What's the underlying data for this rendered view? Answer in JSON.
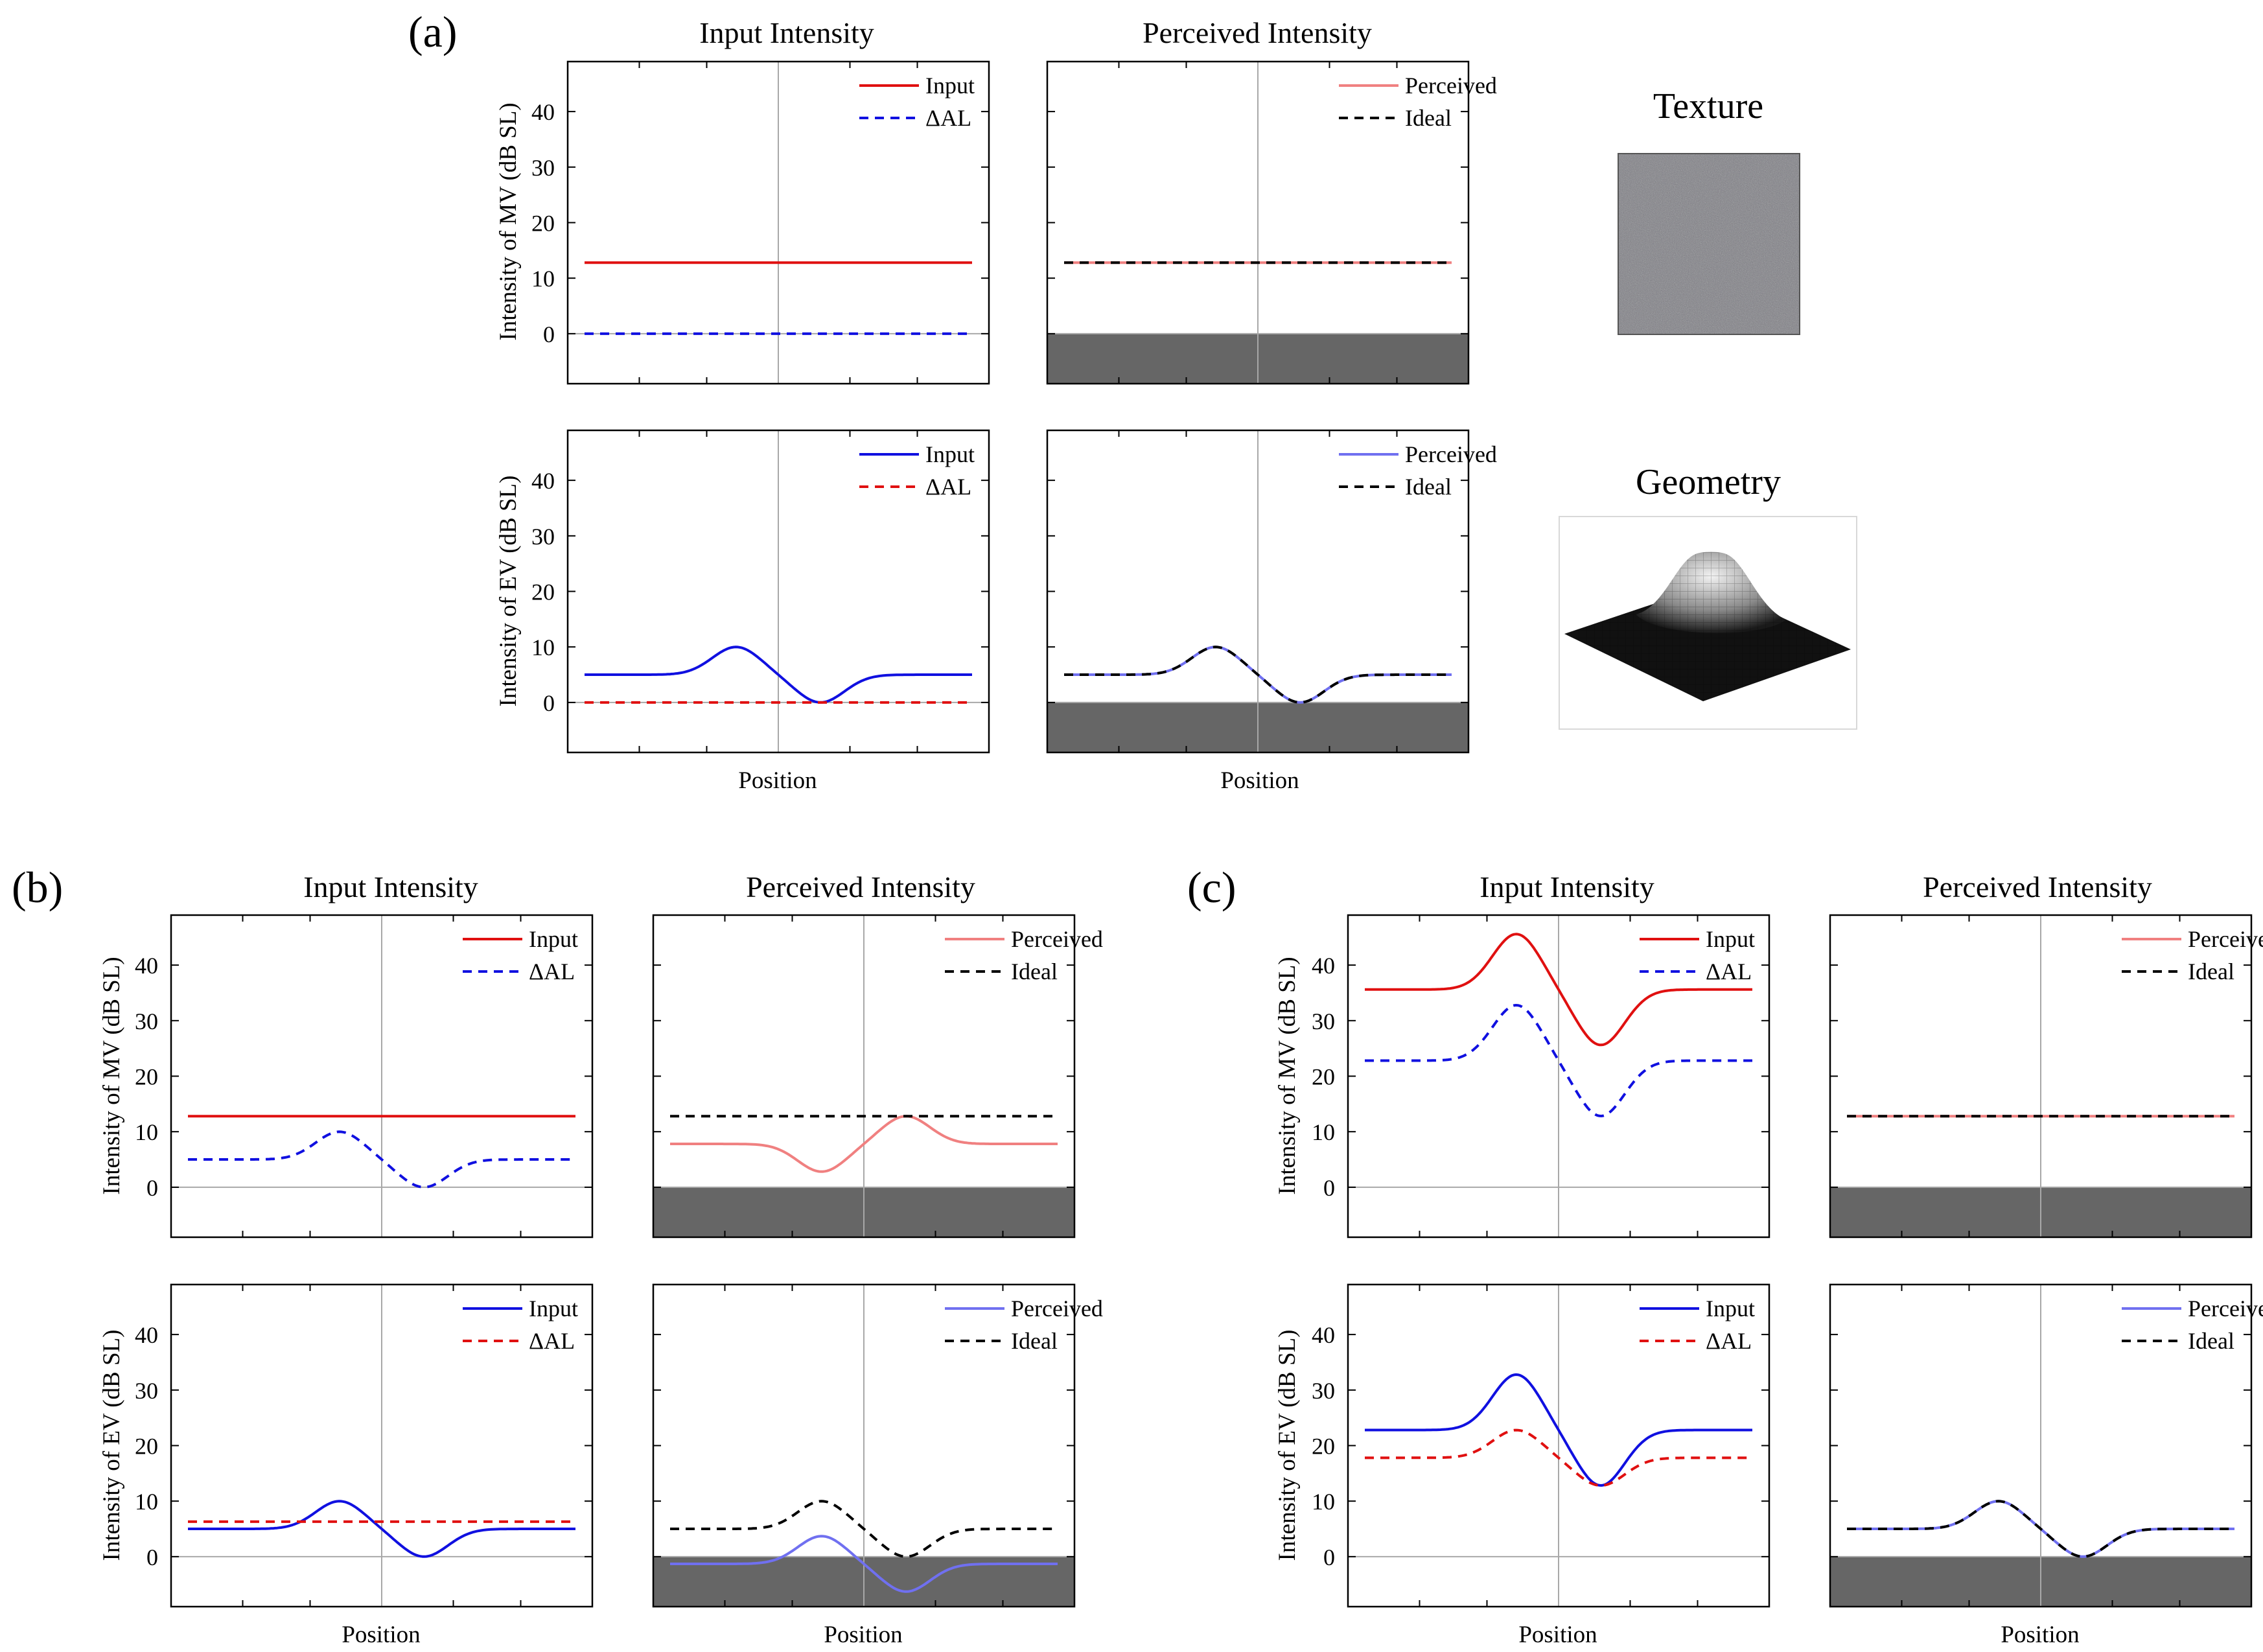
{
  "panel_labels": {
    "a": "(a)",
    "b": "(b)",
    "c": "(c)"
  },
  "column_titles": {
    "input": "Input Intensity",
    "perceived": "Perceived Intensity"
  },
  "axis": {
    "xlabel": "Position",
    "ylabel_mv": "Intensity of MV (dB SL)",
    "ylabel_ev": "Intensity of EV (dB SL)",
    "ylim": [
      -9,
      49
    ],
    "yticks": [
      "0",
      "10",
      "20",
      "30",
      "40"
    ]
  },
  "legend": {
    "input": "Input",
    "dal": "ΔAL",
    "perceived": "Perceived",
    "ideal": "Ideal"
  },
  "side": {
    "texture_title": "Texture",
    "geometry_title": "Geometry"
  },
  "colors": {
    "red": "#e01010",
    "blue": "#1010e0",
    "pink": "#f08080",
    "lightblue": "#7070f0",
    "black": "#000000",
    "floor": "#666666",
    "axis_grey": "#a8a8a8"
  },
  "chart_data": [
    {
      "id": "a-input-mv",
      "type": "line",
      "title": "Input Intensity",
      "xlabel": "",
      "ylabel": "Intensity of MV (dB SL)",
      "ylim": [
        -9,
        49
      ],
      "x": [
        0,
        100
      ],
      "series": [
        {
          "name": "Input",
          "shape": "flat",
          "base": 12.8,
          "color": "red",
          "dash": false
        },
        {
          "name": "ΔAL",
          "shape": "flat",
          "base": 0,
          "color": "blue",
          "dash": true
        }
      ]
    },
    {
      "id": "a-perc-mv",
      "type": "line",
      "title": "Perceived Intensity",
      "xlabel": "",
      "ylabel": "",
      "ylim": [
        -9,
        49
      ],
      "x": [
        0,
        100
      ],
      "series": [
        {
          "name": "Perceived",
          "shape": "flat",
          "base": 12.8,
          "color": "pink",
          "dash": false
        },
        {
          "name": "Ideal",
          "shape": "flat",
          "base": 12.8,
          "color": "black",
          "dash": true
        }
      ]
    },
    {
      "id": "a-input-ev",
      "type": "line",
      "title": "",
      "xlabel": "Position",
      "ylabel": "Intensity of EV (dB SL)",
      "ylim": [
        -9,
        49
      ],
      "x": [
        0,
        100
      ],
      "series": [
        {
          "name": "Input",
          "shape": "bump",
          "base": 5,
          "amplitude": 5,
          "color": "blue",
          "dash": false
        },
        {
          "name": "ΔAL",
          "shape": "flat",
          "base": 0,
          "color": "red",
          "dash": true
        }
      ]
    },
    {
      "id": "a-perc-ev",
      "type": "line",
      "title": "",
      "xlabel": "Position",
      "ylabel": "",
      "ylim": [
        -9,
        49
      ],
      "x": [
        0,
        100
      ],
      "series": [
        {
          "name": "Perceived",
          "shape": "bump",
          "base": 5,
          "amplitude": 5,
          "color": "lightblue",
          "dash": false
        },
        {
          "name": "Ideal",
          "shape": "bump",
          "base": 5,
          "amplitude": 5,
          "color": "black",
          "dash": true
        }
      ]
    },
    {
      "id": "b-input-mv",
      "type": "line",
      "title": "Input Intensity",
      "xlabel": "",
      "ylabel": "Intensity of MV (dB SL)",
      "ylim": [
        -9,
        49
      ],
      "x": [
        0,
        100
      ],
      "series": [
        {
          "name": "Input",
          "shape": "flat",
          "base": 12.8,
          "color": "red",
          "dash": false
        },
        {
          "name": "ΔAL",
          "shape": "bump",
          "base": 5,
          "amplitude": 5,
          "color": "blue",
          "dash": true
        }
      ]
    },
    {
      "id": "b-perc-mv",
      "type": "line",
      "title": "Perceived Intensity",
      "xlabel": "",
      "ylabel": "",
      "ylim": [
        -9,
        49
      ],
      "x": [
        0,
        100
      ],
      "series": [
        {
          "name": "Perceived",
          "shape": "bump",
          "base": 7.8,
          "amplitude": -5,
          "color": "pink",
          "dash": false
        },
        {
          "name": "Ideal",
          "shape": "flat",
          "base": 12.8,
          "color": "black",
          "dash": true
        }
      ]
    },
    {
      "id": "b-input-ev",
      "type": "line",
      "title": "",
      "xlabel": "Position",
      "ylabel": "Intensity of EV (dB SL)",
      "ylim": [
        -9,
        49
      ],
      "x": [
        0,
        100
      ],
      "series": [
        {
          "name": "Input",
          "shape": "bump",
          "base": 5,
          "amplitude": 5,
          "color": "blue",
          "dash": false
        },
        {
          "name": "ΔAL",
          "shape": "flat",
          "base": 6.3,
          "color": "red",
          "dash": true
        }
      ]
    },
    {
      "id": "b-perc-ev",
      "type": "line",
      "title": "",
      "xlabel": "Position",
      "ylabel": "",
      "ylim": [
        -9,
        49
      ],
      "x": [
        0,
        100
      ],
      "series": [
        {
          "name": "Perceived",
          "shape": "bump",
          "base": -1.3,
          "amplitude": 5,
          "color": "lightblue",
          "dash": false
        },
        {
          "name": "Ideal",
          "shape": "bump",
          "base": 5,
          "amplitude": 5,
          "color": "black",
          "dash": true
        }
      ]
    },
    {
      "id": "c-input-mv",
      "type": "line",
      "title": "Input Intensity",
      "xlabel": "",
      "ylabel": "Intensity of MV (dB SL)",
      "ylim": [
        -9,
        49
      ],
      "x": [
        0,
        100
      ],
      "series": [
        {
          "name": "Input",
          "shape": "bump",
          "base": 35.6,
          "amplitude": 10,
          "color": "red",
          "dash": false
        },
        {
          "name": "ΔAL",
          "shape": "bump",
          "base": 22.8,
          "amplitude": 10,
          "color": "blue",
          "dash": true
        }
      ]
    },
    {
      "id": "c-perc-mv",
      "type": "line",
      "title": "Perceived Intensity",
      "xlabel": "",
      "ylabel": "",
      "ylim": [
        -9,
        49
      ],
      "x": [
        0,
        100
      ],
      "series": [
        {
          "name": "Perceived",
          "shape": "flat",
          "base": 12.8,
          "color": "pink",
          "dash": false
        },
        {
          "name": "Ideal",
          "shape": "flat",
          "base": 12.8,
          "color": "black",
          "dash": true
        }
      ]
    },
    {
      "id": "c-input-ev",
      "type": "line",
      "title": "",
      "xlabel": "Position",
      "ylabel": "Intensity of EV (dB SL)",
      "ylim": [
        -9,
        49
      ],
      "x": [
        0,
        100
      ],
      "series": [
        {
          "name": "Input",
          "shape": "bump",
          "base": 22.8,
          "amplitude": 10,
          "color": "blue",
          "dash": false
        },
        {
          "name": "ΔAL",
          "shape": "bump",
          "base": 17.8,
          "amplitude": 5,
          "color": "red",
          "dash": true
        }
      ]
    },
    {
      "id": "c-perc-ev",
      "type": "line",
      "title": "",
      "xlabel": "Position",
      "ylabel": "",
      "ylim": [
        -9,
        49
      ],
      "x": [
        0,
        100
      ],
      "series": [
        {
          "name": "Perceived",
          "shape": "bump",
          "base": 5,
          "amplitude": 5,
          "color": "lightblue",
          "dash": false
        },
        {
          "name": "Ideal",
          "shape": "bump",
          "base": 5,
          "amplitude": 5,
          "color": "black",
          "dash": true
        }
      ]
    }
  ]
}
